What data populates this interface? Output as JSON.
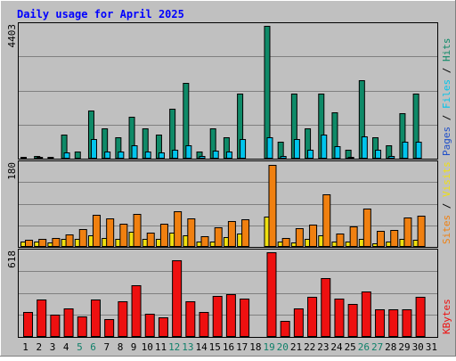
{
  "chart_data": {
    "title": "Daily usage for April 2025",
    "type": "bar",
    "x": [
      "1",
      "2",
      "3",
      "4",
      "5",
      "6",
      "7",
      "8",
      "9",
      "10",
      "11",
      "12",
      "13",
      "14",
      "15",
      "16",
      "17",
      "18",
      "19",
      "20",
      "21",
      "22",
      "23",
      "24",
      "25",
      "26",
      "27",
      "28",
      "29",
      "30",
      "31"
    ],
    "weekend_days": [
      5,
      6,
      12,
      13,
      19,
      20,
      26,
      27
    ],
    "panels": [
      {
        "ymax_label": "4403",
        "ymax": 4403,
        "legend": [
          "Pages",
          "/",
          "Files",
          "/",
          "Hits"
        ],
        "series": [
          {
            "name": "Hits",
            "color": "#0f8a68",
            "values": [
              50,
              100,
              70,
              800,
              250,
              1600,
              1000,
              700,
              1400,
              1000,
              800,
              1650,
              2500,
              250,
              1000,
              700,
              2150,
              0,
              4403,
              550,
              2150,
              1000,
              2150,
              1550,
              300,
              2600,
              700,
              450,
              1500,
              2150,
              0
            ]
          },
          {
            "name": "Files",
            "color": "#00c4ec",
            "values": [
              20,
              70,
              40,
              200,
              40,
              650,
              250,
              250,
              450,
              250,
              220,
              300,
              450,
              100,
              280,
              250,
              650,
              0,
              700,
              90,
              650,
              300,
              800,
              400,
              70,
              750,
              300,
              90,
              550,
              550,
              0
            ]
          },
          {
            "name": "Pages",
            "color": "#1e4ec8",
            "values": [
              2,
              3,
              2,
              10,
              5,
              10,
              8,
              8,
              10,
              8,
              8,
              10,
              10,
              5,
              8,
              8,
              10,
              0,
              15,
              5,
              12,
              8,
              10,
              10,
              5,
              10,
              8,
              5,
              10,
              10,
              0
            ]
          }
        ]
      },
      {
        "ymax_label": "180",
        "ymax": 180,
        "legend": [
          "Sites",
          "/",
          "Visits"
        ],
        "series": [
          {
            "name": "Visits",
            "color": "#f0e010",
            "values": [
              12,
              12,
              9,
              17,
              17,
              25,
              19,
              18,
              32,
              17,
              18,
              31,
              26,
              12,
              12,
              21,
              29,
              0,
              66,
              12,
              9,
              18,
              25,
              11,
              12,
              17,
              7,
              11,
              17,
              16,
              0
            ]
          },
          {
            "name": "Sites",
            "color": "#f08010",
            "values": [
              15,
              17,
              19,
              28,
              39,
              70,
              62,
              50,
              72,
              30,
              50,
              77,
              62,
              24,
              42,
              57,
              60,
              0,
              178,
              20,
              41,
              49,
              114,
              29,
              45,
              83,
              35,
              37,
              63,
              68,
              0
            ]
          }
        ]
      },
      {
        "ymax_label": "618",
        "ymax": 618,
        "legend": [
          "KBytes"
        ],
        "series": [
          {
            "name": "KBytes",
            "color": "#ee1010",
            "values": [
              180,
              270,
              160,
              210,
              150,
              270,
              130,
              260,
              380,
              170,
              140,
              560,
              260,
              180,
              300,
              310,
              280,
              0,
              618,
              120,
              210,
              290,
              430,
              280,
              240,
              330,
              200,
              200,
              200,
              290,
              0
            ]
          }
        ]
      }
    ]
  },
  "colors": {
    "background": "#c0c0c0",
    "title": "#0000ff",
    "outline": "#000000",
    "legend_separator": "#000000",
    "weekend_label": "#10806a"
  }
}
